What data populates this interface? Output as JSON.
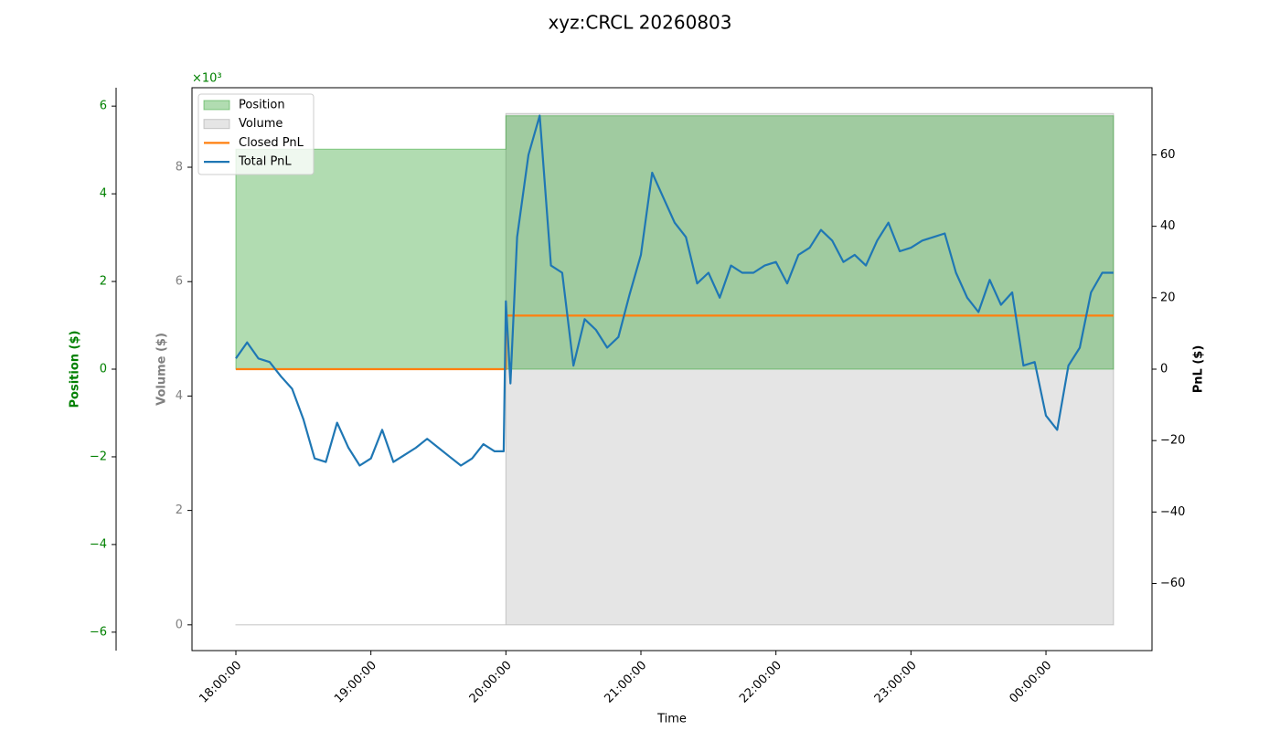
{
  "chart_data": {
    "type": "line",
    "title": "xyz:CRCL 20260803",
    "xlabel": "Time",
    "ylabel": "Position ($)",
    "y_offset_label": "×10³",
    "y2label": "PnL ($)",
    "y3label": "Volume ($)",
    "legend": "upper left",
    "xlim": [
      "17:40:30",
      "00:47:07"
    ],
    "xticks": [
      "18:00:00",
      "19:00:00",
      "20:00:00",
      "21:00:00",
      "22:00:00",
      "23:00:00",
      "00:00:00"
    ],
    "ylim": [
      -6.42,
      6.42
    ],
    "yticks": [
      {
        "value": -6,
        "label": "−6"
      },
      {
        "value": -4,
        "label": "−4"
      },
      {
        "value": -2,
        "label": "−2"
      },
      0,
      2,
      4,
      6
    ],
    "y2lim": [
      -78.8,
      78.8
    ],
    "y2ticks": [
      {
        "value": -60,
        "label": "−60"
      },
      {
        "value": -40,
        "label": "−40"
      },
      {
        "value": -20,
        "label": "−20"
      },
      0,
      20,
      40,
      60
    ],
    "y3lim": [
      -0.45,
      9.39
    ],
    "y3ticks": [
      0,
      2,
      4,
      6,
      8
    ],
    "series": [
      {
        "name": "Position",
        "style": "area",
        "axis": "y",
        "color": "#2ca02c",
        "x": [
          "18:00:00",
          "20:00:00",
          "20:00:00",
          "00:30:00"
        ],
        "values": [
          5.02,
          5.02,
          5.78,
          5.78
        ]
      },
      {
        "name": "Volume",
        "style": "area",
        "axis": "y3",
        "color": "#999999",
        "x": [
          "18:00:00",
          "20:00:00",
          "20:00:00",
          "00:30:00"
        ],
        "values": [
          0,
          0,
          8.94,
          8.94
        ]
      },
      {
        "name": "Closed PnL",
        "style": "line",
        "axis": "y2",
        "color": "#ff7f0e",
        "x": [
          "18:00:00",
          "20:00:00",
          "20:00:00",
          "00:30:00"
        ],
        "values": [
          0,
          0,
          15,
          15
        ]
      },
      {
        "name": "Total PnL",
        "style": "line",
        "axis": "y2",
        "color": "#1f77b4",
        "x": [
          "18:00:00",
          "18:05:00",
          "18:10:00",
          "18:15:00",
          "18:20:00",
          "18:25:00",
          "18:30:00",
          "18:35:00",
          "18:40:00",
          "18:45:00",
          "18:50:00",
          "18:55:00",
          "19:00:00",
          "19:05:00",
          "19:10:00",
          "19:15:00",
          "19:20:00",
          "19:25:00",
          "19:30:00",
          "19:35:00",
          "19:40:00",
          "19:45:00",
          "19:50:00",
          "19:55:00",
          "19:59:00",
          "20:00:00",
          "20:02:00",
          "20:05:00",
          "20:10:00",
          "20:15:00",
          "20:20:00",
          "20:25:00",
          "20:30:00",
          "20:35:00",
          "20:40:00",
          "20:45:00",
          "20:50:00",
          "20:55:00",
          "21:00:00",
          "21:05:00",
          "21:10:00",
          "21:15:00",
          "21:20:00",
          "21:25:00",
          "21:30:00",
          "21:35:00",
          "21:40:00",
          "21:45:00",
          "21:50:00",
          "21:55:00",
          "22:00:00",
          "22:05:00",
          "22:10:00",
          "22:15:00",
          "22:20:00",
          "22:25:00",
          "22:30:00",
          "22:35:00",
          "22:40:00",
          "22:45:00",
          "22:50:00",
          "22:55:00",
          "23:00:00",
          "23:05:00",
          "23:10:00",
          "23:15:00",
          "23:20:00",
          "23:25:00",
          "23:30:00",
          "23:35:00",
          "23:40:00",
          "23:45:00",
          "23:50:00",
          "23:55:00",
          "00:00:00",
          "00:05:00",
          "00:10:00",
          "00:15:00",
          "00:20:00",
          "00:25:00",
          "00:30:00"
        ],
        "values": [
          3,
          7.5,
          3,
          2,
          -2,
          -5.5,
          -14,
          -25,
          -26,
          -15,
          -22,
          -27,
          -25,
          -17,
          -26,
          -24,
          -22,
          -19.5,
          -22,
          -24.5,
          -27,
          -25,
          -21,
          -23,
          -23,
          19,
          -4,
          37,
          60,
          71,
          29,
          27,
          1,
          14,
          11,
          6,
          9,
          21,
          32,
          55,
          48,
          41,
          37,
          24,
          27,
          20,
          29,
          27,
          27,
          29,
          30,
          24,
          32,
          34,
          39,
          36,
          30,
          32,
          29,
          36,
          41,
          33,
          34,
          36,
          37,
          38,
          27,
          20,
          16,
          25,
          18,
          21.5,
          1,
          2,
          -13,
          -17,
          1,
          6,
          21.5,
          27,
          27
        ]
      }
    ]
  }
}
